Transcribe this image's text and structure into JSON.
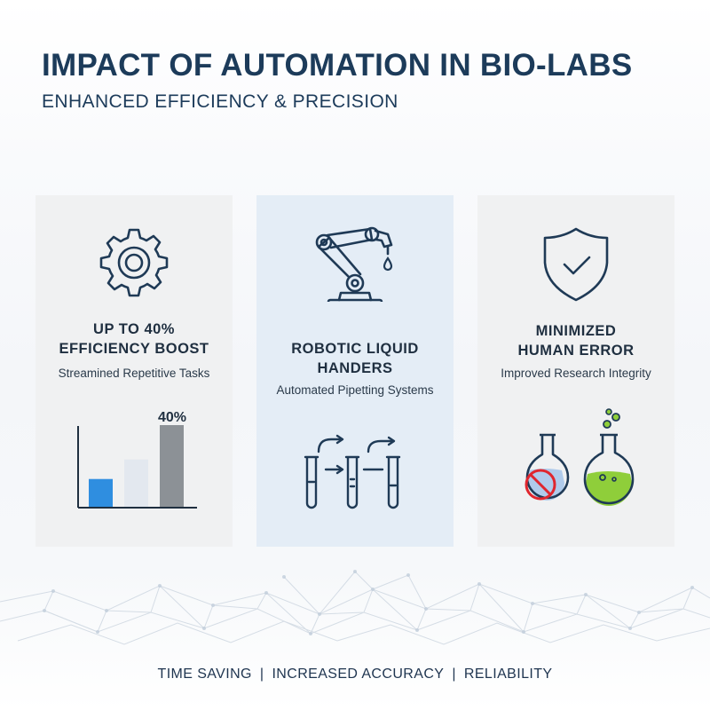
{
  "title": "IMPACT OF AUTOMATION IN BIO-LABS",
  "subtitle": "ENHANCED EFFICIENCY & PRECISION",
  "cards": [
    {
      "icon": "gear-icon",
      "heading_line1": "UP TO 40%",
      "heading_line2": "EFFICIENCY BOOST",
      "description": "Streamined Repetitive Tasks",
      "bar_label": "40%",
      "bars": [
        {
          "value": 0.34,
          "color": "#2f8ee0"
        },
        {
          "value": 0.58,
          "color": "#e3e8ef"
        },
        {
          "value": 1.0,
          "color": "#8c9196"
        }
      ]
    },
    {
      "icon": "robotic-arm-icon",
      "heading_line1": "ROBOTIC LIQUID",
      "heading_line2": "HANDERS",
      "description": "Automated Pipetting Systems",
      "illustration": "test-tubes-transfer-icon"
    },
    {
      "icon": "shield-check-icon",
      "heading_line1": "MINIMIZED",
      "heading_line2": "HUMAN ERROR",
      "description": "Improved Research Integrity",
      "illustration": "flasks-error-vs-correct-icon"
    }
  ],
  "footer": {
    "item1": "TIME SAVING",
    "item2": "INCREASED ACCURACY",
    "item3": "RELIABILITY",
    "separator": "|"
  },
  "colors": {
    "title": "#1c3b5a",
    "icon_stroke": "#1f3a56",
    "accent_blue": "#2f8ee0",
    "error_red": "#e0262e",
    "liquid_green": "#8fce3a"
  }
}
